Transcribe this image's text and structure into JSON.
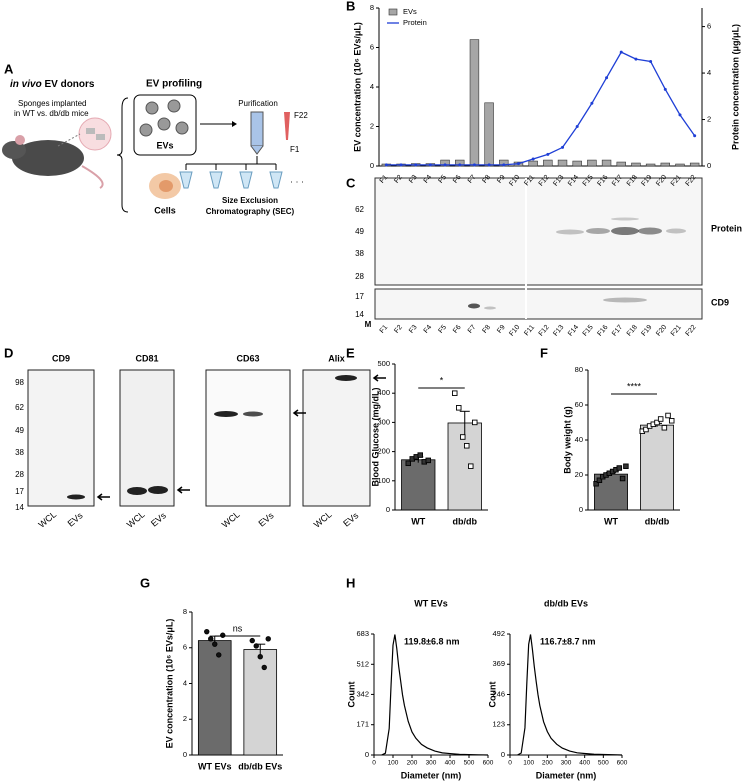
{
  "panel_labels": [
    "A",
    "B",
    "C",
    "D",
    "E",
    "F",
    "G",
    "H"
  ],
  "panel_a": {
    "donors_italic": "in vivo",
    "donors_rest": " EV donors",
    "profiling": "EV profiling",
    "sponges": [
      "Sponges implanted",
      "in WT vs. db/db mice"
    ],
    "evs": "EVs",
    "cells": "Cells",
    "purification": "Purification",
    "f22": "F22",
    "f1": "F1",
    "dots": "· · ·",
    "sec": [
      "Size Exclusion",
      "Chromatography (SEC)"
    ]
  },
  "panel_c": {
    "protein_markers": [
      "62",
      "49",
      "38",
      "28"
    ],
    "cd9_markers": [
      "17",
      "14"
    ],
    "marker_lane": "M",
    "protein_label": "Protein",
    "cd9_label": "CD9"
  },
  "panel_d": {
    "markers": [
      "98",
      "62",
      "49",
      "38",
      "28",
      "17",
      "14"
    ],
    "lanes": [
      "WCL",
      "EVs"
    ],
    "blots": [
      "CD9",
      "CD81",
      "CD63",
      "Alix"
    ]
  },
  "chart_data": [
    {
      "type": "bar",
      "ylabel": "EV concentration (10⁶ EVs/μL)",
      "y2label": "Protein concentration (μg/μL)",
      "categories": [
        "F1",
        "F2",
        "F3",
        "F4",
        "F5",
        "F6",
        "F7",
        "F8",
        "F9",
        "F10",
        "F11",
        "F12",
        "F13",
        "F14",
        "F15",
        "F16",
        "F17",
        "F18",
        "F19",
        "F20",
        "F21",
        "F22"
      ],
      "series": [
        {
          "name": "EVs",
          "type": "bar",
          "color": "#a6a6a6",
          "values": [
            0.1,
            0.1,
            0.12,
            0.12,
            0.3,
            0.3,
            6.4,
            3.2,
            0.3,
            0.2,
            0.25,
            0.3,
            0.3,
            0.25,
            0.3,
            0.3,
            0.2,
            0.15,
            0.1,
            0.15,
            0.1,
            0.15
          ]
        },
        {
          "name": "Protein",
          "type": "line",
          "axis": "y2",
          "color": "#1f3fd6",
          "values": [
            0.05,
            0.05,
            0.05,
            0.05,
            0.05,
            0.05,
            0.05,
            0.05,
            0.05,
            0.1,
            0.3,
            0.5,
            0.8,
            1.7,
            2.7,
            3.8,
            4.9,
            4.6,
            4.5,
            3.3,
            2.2,
            1.3
          ]
        }
      ],
      "ylim": [
        0,
        8
      ],
      "yticks": [
        0,
        2,
        4,
        6,
        8
      ],
      "y2lim": [
        0,
        6.8
      ],
      "y2ticks": [
        0,
        2,
        4,
        6
      ],
      "legend": "top-left"
    },
    {
      "type": "bar",
      "ylabel": "Blood Glucose (mg/dL)",
      "categories": [
        "WT",
        "db/db"
      ],
      "values": [
        172,
        298
      ],
      "errors": [
        10,
        40
      ],
      "points": [
        [
          160,
          175,
          182,
          188,
          165,
          170
        ],
        [
          400,
          350,
          250,
          220,
          150,
          300
        ]
      ],
      "colors": [
        "#6b6b6b",
        "#d4d4d4"
      ],
      "point_fill": [
        "#333333",
        "#ffffff"
      ],
      "marker": "square",
      "significance": "*",
      "ylim": [
        0,
        500
      ],
      "yticks": [
        0,
        100,
        200,
        300,
        400,
        500
      ]
    },
    {
      "type": "bar",
      "ylabel": "Body weight (g)",
      "categories": [
        "WT",
        "db/db"
      ],
      "values": [
        20.5,
        48.5
      ],
      "errors": [
        1,
        1
      ],
      "points": [
        [
          15,
          17,
          19,
          20,
          21,
          22,
          23,
          24,
          18,
          25
        ],
        [
          45,
          46,
          48,
          49,
          50,
          52,
          47,
          54,
          51
        ]
      ],
      "colors": [
        "#6b6b6b",
        "#d4d4d4"
      ],
      "point_fill": [
        "#333333",
        "#ffffff"
      ],
      "marker": "square",
      "significance": "****",
      "ylim": [
        0,
        80
      ],
      "yticks": [
        0,
        20,
        40,
        60,
        80
      ]
    },
    {
      "type": "bar",
      "ylabel": "EV concentration (10⁶ EVs/μL)",
      "categories": [
        "WT EVs",
        "db/db EVs"
      ],
      "values": [
        6.4,
        5.9
      ],
      "errors": [
        0.25,
        0.3
      ],
      "points": [
        [
          6.9,
          6.5,
          6.2,
          5.6,
          6.7
        ],
        [
          6.4,
          6.1,
          5.5,
          4.9,
          6.5
        ]
      ],
      "colors": [
        "#6b6b6b",
        "#d4d4d4"
      ],
      "point_fill": [
        "#111111",
        "#111111"
      ],
      "marker": "circle",
      "significance": "ns",
      "ylim": [
        0,
        8
      ],
      "yticks": [
        0,
        2,
        4,
        6,
        8
      ]
    },
    {
      "type": "line",
      "title": "WT EVs",
      "annotation": "119.8±6.8 nm",
      "annotation_color": "#1a2fd6",
      "xlabel": "Diameter (nm)",
      "ylabel": "Count",
      "x": [
        40,
        60,
        80,
        90,
        100,
        110,
        120,
        130,
        140,
        150,
        160,
        180,
        200,
        220,
        250,
        280,
        320,
        360,
        400,
        450,
        500,
        550,
        600
      ],
      "values": [
        0,
        10,
        150,
        400,
        620,
        680,
        600,
        500,
        420,
        340,
        280,
        190,
        130,
        95,
        60,
        40,
        22,
        12,
        8,
        4,
        2,
        1,
        0
      ],
      "color": "#000000",
      "xlim": [
        0,
        600
      ],
      "xticks": [
        0,
        100,
        200,
        300,
        400,
        500,
        600
      ],
      "ylim": [
        0,
        683
      ],
      "yticks": [
        0,
        171,
        342,
        512,
        683
      ]
    },
    {
      "type": "line",
      "title": "db/db EVs",
      "annotation": "116.7±8.7 nm",
      "annotation_color": "#1a2fd6",
      "xlabel": "Diameter (nm)",
      "ylabel": "Count",
      "x": [
        40,
        60,
        80,
        90,
        100,
        110,
        120,
        130,
        140,
        150,
        160,
        180,
        200,
        220,
        250,
        280,
        320,
        360,
        400,
        450,
        500,
        550,
        600
      ],
      "values": [
        0,
        8,
        110,
        290,
        450,
        490,
        430,
        360,
        300,
        245,
        200,
        135,
        95,
        68,
        44,
        28,
        16,
        9,
        6,
        3,
        2,
        1,
        0
      ],
      "color": "#000000",
      "xlim": [
        0,
        600
      ],
      "xticks": [
        0,
        100,
        200,
        300,
        400,
        500,
        600
      ],
      "ylim": [
        0,
        492
      ],
      "yticks": [
        0,
        123,
        246,
        369,
        492
      ]
    }
  ]
}
